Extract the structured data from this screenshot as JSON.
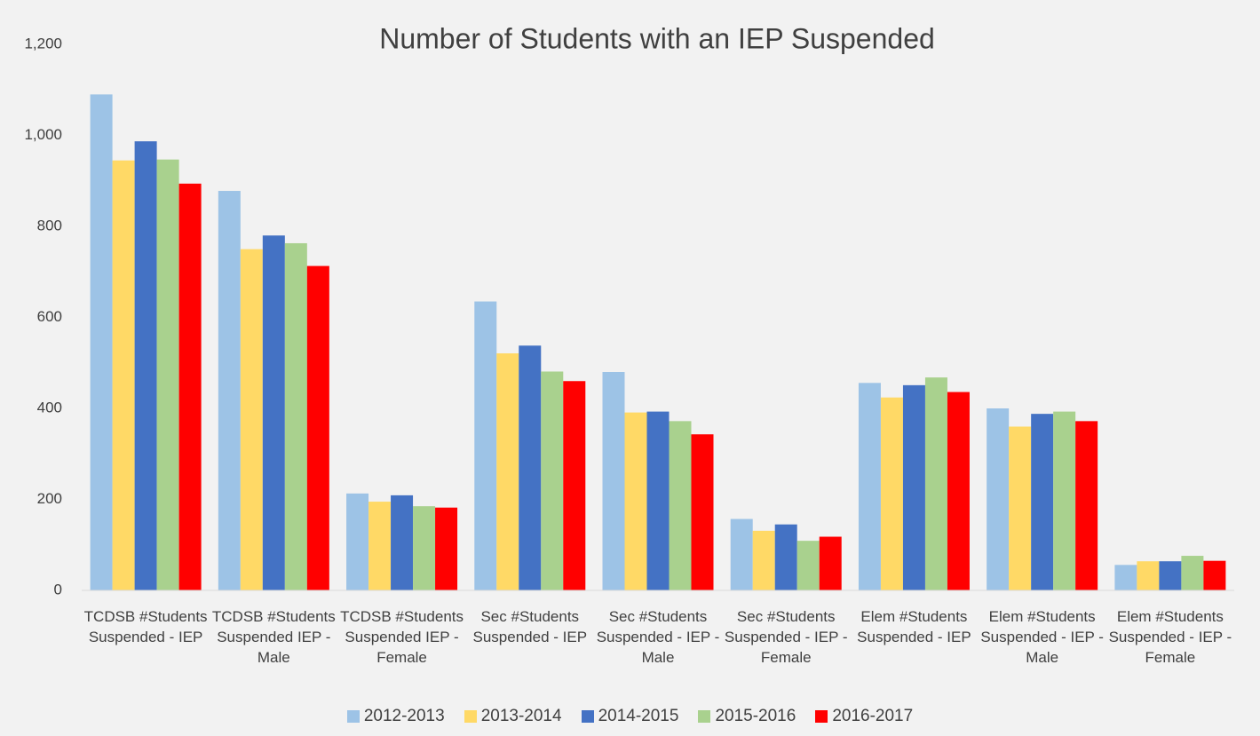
{
  "chart_data": {
    "type": "bar",
    "title": "Number of Students with an IEP Suspended",
    "categories": [
      "TCDSB #Students Suspended - IEP",
      "TCDSB #Students Suspended IEP - Male",
      "TCDSB #Students Suspended IEP - Female",
      "Sec #Students Suspended - IEP",
      "Sec #Students Suspended - IEP - Male",
      "Sec #Students Suspended - IEP - Female",
      "Elem #Students Suspended - IEP",
      "Elem #Students Suspended - IEP - Male",
      "Elem #Students Suspended - IEP - Female"
    ],
    "series": [
      {
        "name": "2012-2013",
        "color": "#9dc3e6",
        "values": [
          1090,
          878,
          213,
          635,
          480,
          157,
          456,
          400,
          56
        ]
      },
      {
        "name": "2013-2014",
        "color": "#ffd966",
        "values": [
          945,
          750,
          195,
          521,
          391,
          131,
          424,
          360,
          64
        ]
      },
      {
        "name": "2014-2015",
        "color": "#4472c4",
        "values": [
          987,
          780,
          209,
          538,
          393,
          145,
          451,
          388,
          64
        ]
      },
      {
        "name": "2015-2016",
        "color": "#a9d18e",
        "values": [
          947,
          763,
          185,
          481,
          372,
          109,
          468,
          393,
          76
        ]
      },
      {
        "name": "2016-2017",
        "color": "#ff0000",
        "values": [
          894,
          713,
          182,
          460,
          343,
          118,
          436,
          372,
          65
        ]
      }
    ],
    "ylim": [
      0,
      1200
    ],
    "yticks": [
      0,
      200,
      400,
      600,
      800,
      {
        "value": 1000,
        "label": "1,000"
      },
      {
        "value": 1200,
        "label": "1,200"
      }
    ],
    "grid": false,
    "legend": "bottom"
  }
}
